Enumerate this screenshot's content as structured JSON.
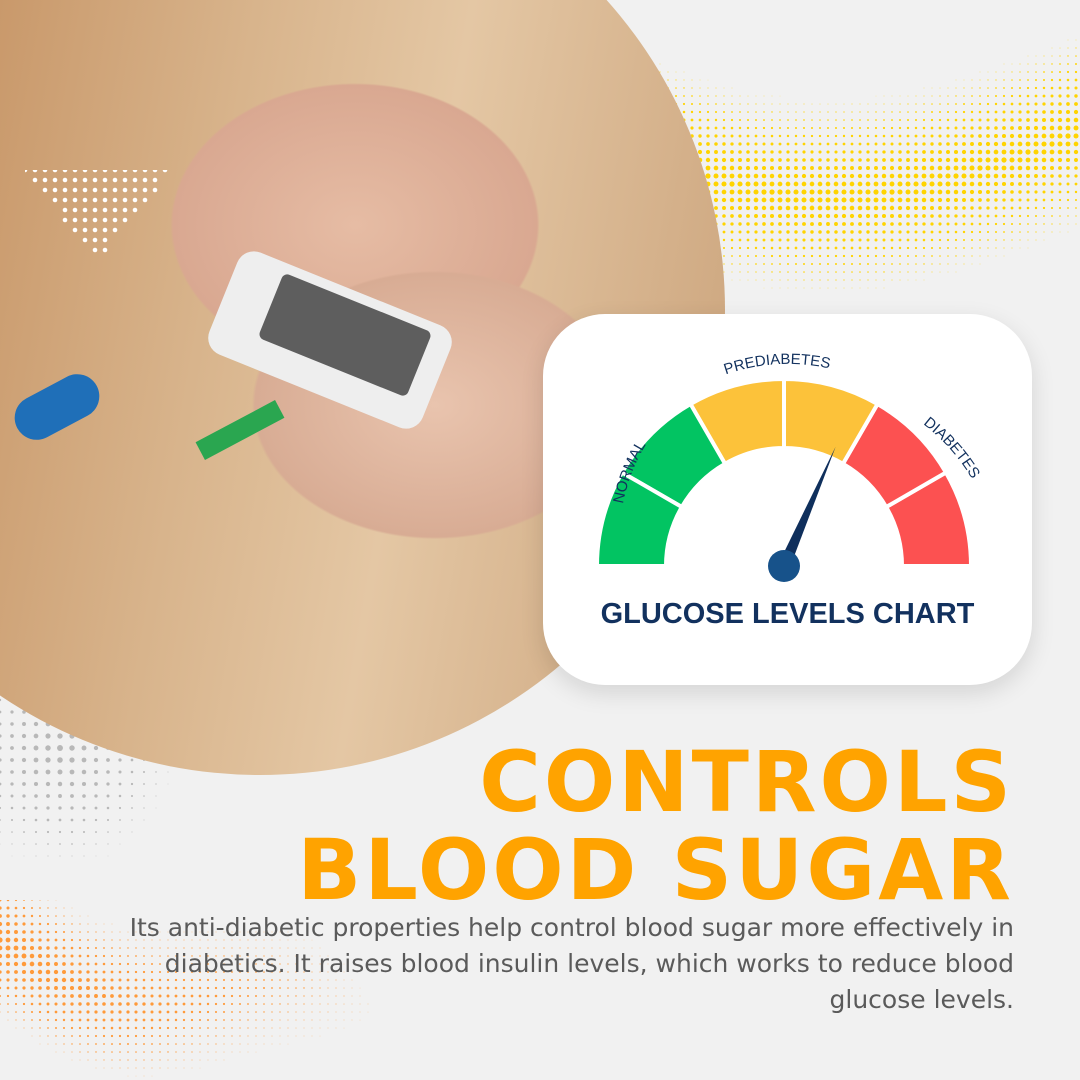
{
  "gauge": {
    "title": "GLUCOSE LEVELS CHART",
    "labels": {
      "normal": "NORMAL",
      "prediabetes": "PREDIABETES",
      "diabetes": "DIABETES"
    },
    "needle_position_fraction": 0.63,
    "colors": {
      "normal": "#02c462",
      "prediabetes": "#fcc23a",
      "diabetes": "#fc5151",
      "needle": "#0f2f5c",
      "hub": "#17528a"
    }
  },
  "headline": {
    "line1": "CONTROLS",
    "line2": "BLOOD SUGAR"
  },
  "description": "Its anti-diabetic properties help control blood sugar more effectively in diabetics. It raises blood insulin levels, which works to reduce blood glucose levels.",
  "colors": {
    "accent": "#ffa300",
    "background": "#f1f1f1",
    "yellow_dots": "#ffd400",
    "orange_dots": "#ff9a3a",
    "gray_dots": "#b8b8b8"
  }
}
